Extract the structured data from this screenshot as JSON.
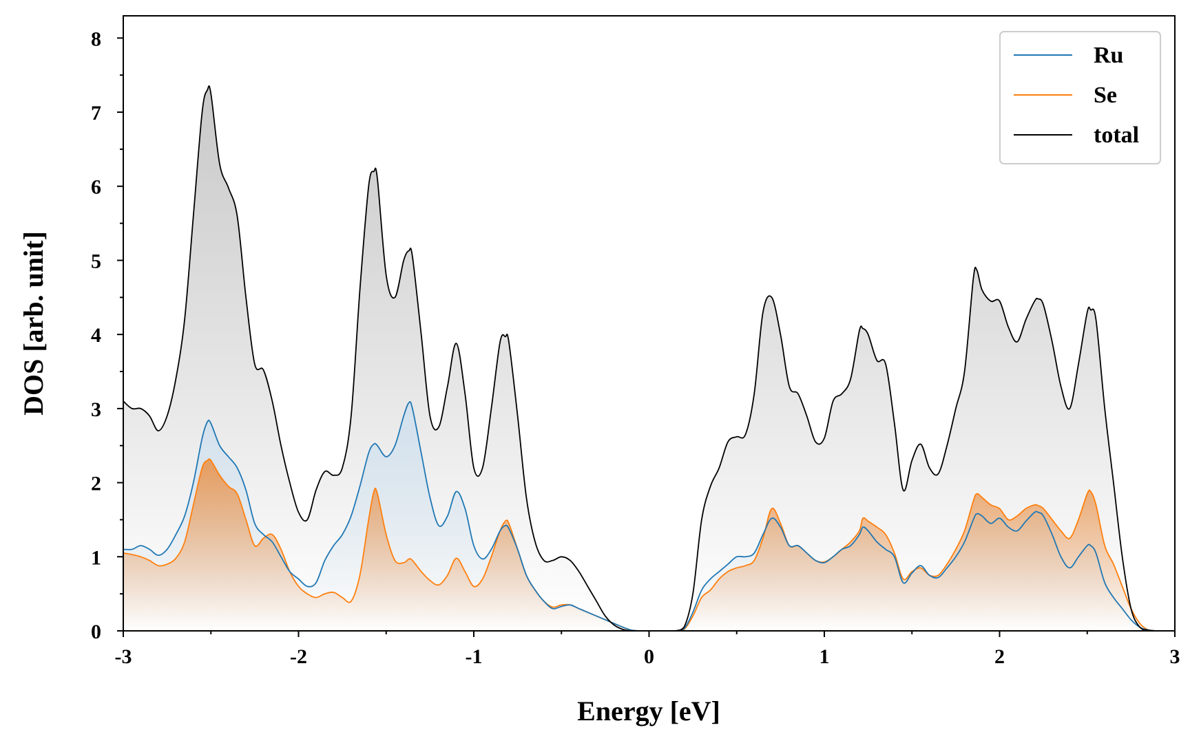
{
  "chart_data": {
    "type": "line",
    "title": "",
    "xlabel": "Energy [eV]",
    "ylabel": "DOS [arb. unit]",
    "xlim": [
      -3,
      3
    ],
    "ylim": [
      0,
      8.3
    ],
    "xticks": [
      "-3",
      "-2",
      "-1",
      "0",
      "1",
      "2",
      "3"
    ],
    "yticks": [
      "0",
      "1",
      "2",
      "3",
      "4",
      "5",
      "6",
      "7",
      "8"
    ],
    "grid": false,
    "legend_position": "top-right",
    "x": [
      -3.0,
      -2.95,
      -2.9,
      -2.85,
      -2.8,
      -2.75,
      -2.7,
      -2.65,
      -2.6,
      -2.55,
      -2.52,
      -2.5,
      -2.45,
      -2.4,
      -2.35,
      -2.3,
      -2.25,
      -2.2,
      -2.15,
      -2.1,
      -2.05,
      -2.0,
      -1.95,
      -1.9,
      -1.85,
      -1.8,
      -1.75,
      -1.7,
      -1.65,
      -1.6,
      -1.57,
      -1.55,
      -1.5,
      -1.45,
      -1.4,
      -1.37,
      -1.35,
      -1.3,
      -1.25,
      -1.2,
      -1.15,
      -1.1,
      -1.05,
      -1.0,
      -0.95,
      -0.9,
      -0.85,
      -0.82,
      -0.8,
      -0.75,
      -0.7,
      -0.65,
      -0.6,
      -0.55,
      -0.5,
      -0.45,
      -0.4,
      -0.35,
      -0.3,
      -0.25,
      -0.2,
      -0.15,
      -0.1,
      -0.05,
      0.0,
      0.05,
      0.1,
      0.15,
      0.2,
      0.25,
      0.3,
      0.35,
      0.4,
      0.45,
      0.5,
      0.55,
      0.6,
      0.65,
      0.7,
      0.75,
      0.8,
      0.85,
      0.9,
      0.95,
      1.0,
      1.05,
      1.1,
      1.15,
      1.2,
      1.22,
      1.25,
      1.3,
      1.35,
      1.4,
      1.45,
      1.5,
      1.55,
      1.6,
      1.65,
      1.7,
      1.75,
      1.8,
      1.85,
      1.87,
      1.9,
      1.95,
      2.0,
      2.05,
      2.1,
      2.15,
      2.2,
      2.22,
      2.25,
      2.3,
      2.35,
      2.4,
      2.45,
      2.5,
      2.52,
      2.55,
      2.6,
      2.65,
      2.7,
      2.75,
      2.8,
      2.85,
      2.9,
      2.95,
      3.0
    ],
    "series": [
      {
        "name": "Ru",
        "color": "#1f77b4",
        "values": [
          1.1,
          1.1,
          1.15,
          1.1,
          1.02,
          1.1,
          1.3,
          1.55,
          2.0,
          2.6,
          2.82,
          2.8,
          2.5,
          2.35,
          2.2,
          1.9,
          1.45,
          1.3,
          1.2,
          1.0,
          0.8,
          0.7,
          0.6,
          0.65,
          0.95,
          1.15,
          1.3,
          1.55,
          1.95,
          2.4,
          2.52,
          2.5,
          2.35,
          2.5,
          2.9,
          3.08,
          3.0,
          2.4,
          1.8,
          1.42,
          1.55,
          1.88,
          1.65,
          1.15,
          0.97,
          1.1,
          1.35,
          1.42,
          1.38,
          1.1,
          0.75,
          0.55,
          0.4,
          0.3,
          0.33,
          0.35,
          0.3,
          0.25,
          0.2,
          0.15,
          0.1,
          0.05,
          0.01,
          0.0,
          0.0,
          0.0,
          0.0,
          0.0,
          0.03,
          0.25,
          0.55,
          0.7,
          0.8,
          0.9,
          1.0,
          1.0,
          1.05,
          1.3,
          1.52,
          1.4,
          1.15,
          1.15,
          1.05,
          0.95,
          0.92,
          1.0,
          1.1,
          1.15,
          1.3,
          1.4,
          1.35,
          1.2,
          1.1,
          1.0,
          0.65,
          0.78,
          0.88,
          0.75,
          0.72,
          0.85,
          1.0,
          1.2,
          1.5,
          1.58,
          1.55,
          1.45,
          1.52,
          1.4,
          1.35,
          1.48,
          1.6,
          1.6,
          1.55,
          1.3,
          1.0,
          0.85,
          1.0,
          1.15,
          1.15,
          1.05,
          0.65,
          0.45,
          0.3,
          0.15,
          0.05,
          0.01,
          0.0,
          0.0,
          0.0
        ],
        "fill": "#dde6ee"
      },
      {
        "name": "Se",
        "color": "#ff7f0e",
        "values": [
          1.05,
          1.03,
          1.0,
          0.95,
          0.88,
          0.9,
          0.98,
          1.2,
          1.7,
          2.2,
          2.3,
          2.3,
          2.1,
          1.95,
          1.85,
          1.5,
          1.15,
          1.25,
          1.3,
          1.1,
          0.8,
          0.6,
          0.5,
          0.45,
          0.5,
          0.52,
          0.45,
          0.4,
          0.75,
          1.5,
          1.88,
          1.85,
          1.3,
          0.95,
          0.92,
          0.97,
          0.95,
          0.8,
          0.68,
          0.62,
          0.75,
          0.98,
          0.8,
          0.6,
          0.7,
          1.0,
          1.35,
          1.48,
          1.45,
          1.1,
          0.75,
          0.55,
          0.4,
          0.32,
          0.35,
          0.35,
          0.3,
          0.25,
          0.2,
          0.15,
          0.1,
          0.05,
          0.01,
          0.0,
          0.0,
          0.0,
          0.0,
          0.0,
          0.02,
          0.2,
          0.45,
          0.55,
          0.7,
          0.8,
          0.85,
          0.88,
          0.95,
          1.25,
          1.65,
          1.45,
          1.15,
          1.15,
          1.05,
          0.95,
          0.93,
          1.0,
          1.1,
          1.2,
          1.35,
          1.52,
          1.48,
          1.4,
          1.3,
          1.05,
          0.7,
          0.8,
          0.85,
          0.75,
          0.75,
          0.9,
          1.1,
          1.35,
          1.75,
          1.85,
          1.8,
          1.7,
          1.65,
          1.5,
          1.55,
          1.65,
          1.7,
          1.69,
          1.65,
          1.5,
          1.35,
          1.25,
          1.5,
          1.85,
          1.88,
          1.7,
          1.15,
          0.9,
          0.6,
          0.3,
          0.1,
          0.01,
          0.0,
          0.0,
          0.0
        ],
        "fill": "#f2994a"
      },
      {
        "name": "total",
        "color": "#000000",
        "values": [
          3.1,
          3.0,
          3.0,
          2.9,
          2.7,
          2.9,
          3.4,
          4.2,
          5.6,
          7.0,
          7.3,
          7.25,
          6.3,
          5.98,
          5.6,
          4.5,
          3.6,
          3.52,
          3.1,
          2.5,
          2.0,
          1.6,
          1.5,
          1.9,
          2.15,
          2.1,
          2.2,
          2.9,
          4.6,
          6.0,
          6.2,
          6.1,
          4.8,
          4.5,
          5.0,
          5.13,
          5.05,
          4.0,
          2.9,
          2.75,
          3.3,
          3.88,
          3.2,
          2.2,
          2.2,
          3.0,
          3.9,
          3.97,
          3.9,
          2.9,
          1.8,
          1.2,
          0.95,
          0.95,
          1.0,
          0.95,
          0.8,
          0.6,
          0.4,
          0.2,
          0.08,
          0.02,
          0.0,
          0.0,
          0.0,
          0.0,
          0.0,
          0.0,
          0.05,
          0.5,
          1.5,
          1.95,
          2.2,
          2.55,
          2.62,
          2.65,
          3.2,
          4.3,
          4.5,
          4.0,
          3.3,
          3.2,
          2.9,
          2.55,
          2.6,
          3.1,
          3.2,
          3.4,
          4.05,
          4.08,
          4.0,
          3.65,
          3.6,
          2.8,
          1.9,
          2.3,
          2.52,
          2.2,
          2.12,
          2.5,
          3.0,
          3.5,
          4.75,
          4.87,
          4.6,
          4.45,
          4.45,
          4.1,
          3.9,
          4.2,
          4.45,
          4.48,
          4.4,
          3.9,
          3.3,
          3.0,
          3.6,
          4.3,
          4.33,
          4.2,
          3.0,
          2.0,
          1.0,
          0.3,
          0.05,
          0.01,
          0.0,
          0.0,
          0.0
        ],
        "fill": "#c8c8c8"
      }
    ]
  }
}
